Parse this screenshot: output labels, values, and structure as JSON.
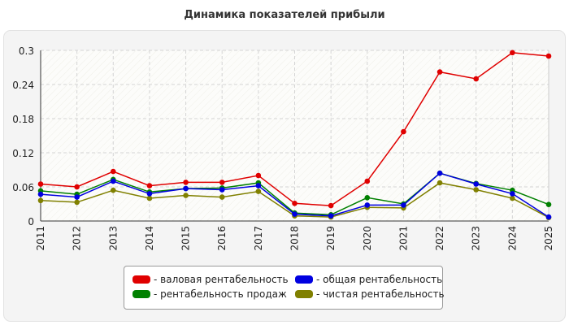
{
  "chart_data": {
    "type": "line",
    "title": "Динамика показателей прибыли",
    "x": [
      "2011",
      "2012",
      "2013",
      "2014",
      "2015",
      "2016",
      "2017",
      "2018",
      "2019",
      "2020",
      "2021",
      "2022",
      "2023",
      "2024",
      "2025"
    ],
    "ylim": [
      0,
      0.3
    ],
    "yticks": [
      "0",
      "0.06",
      "0.12",
      "0.18",
      "0.24",
      "0.3"
    ],
    "grid": true,
    "legend_position": "bottom",
    "series": [
      {
        "name": "- валовая рентабельность",
        "color": "#e00000",
        "values": [
          0.065,
          0.06,
          0.087,
          0.062,
          0.068,
          0.068,
          0.08,
          0.031,
          0.027,
          0.07,
          0.157,
          0.262,
          0.25,
          0.296,
          0.29
        ]
      },
      {
        "name": "- общая рентабельность",
        "color": "#0000e0",
        "values": [
          0.047,
          0.042,
          0.07,
          0.048,
          0.057,
          0.055,
          0.062,
          0.012,
          0.009,
          0.028,
          0.028,
          0.084,
          0.065,
          0.048,
          0.007
        ]
      },
      {
        "name": "- рентабельность продаж",
        "color": "#008000",
        "values": [
          0.053,
          0.047,
          0.073,
          0.051,
          0.057,
          0.058,
          0.067,
          0.014,
          0.011,
          0.041,
          0.03,
          0.084,
          0.066,
          0.054,
          0.029
        ]
      },
      {
        "name": "- чистая рентабельность",
        "color": "#808000",
        "values": [
          0.036,
          0.033,
          0.054,
          0.04,
          0.045,
          0.042,
          0.052,
          0.009,
          0.007,
          0.024,
          0.023,
          0.067,
          0.055,
          0.04,
          0.006
        ]
      }
    ]
  }
}
